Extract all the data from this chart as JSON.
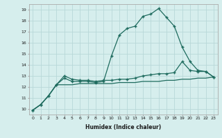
{
  "xlabel": "Humidex (Indice chaleur)",
  "ylabel": "",
  "background_color": "#d6eeed",
  "grid_color": "#b8d8d8",
  "line_color": "#1e6b5e",
  "xlim": [
    -0.5,
    23.5
  ],
  "ylim": [
    9.5,
    19.5
  ],
  "xtick_labels": [
    "0",
    "1",
    "2",
    "3",
    "4",
    "5",
    "6",
    "7",
    "8",
    "9",
    "10",
    "11",
    "12",
    "13",
    "14",
    "15",
    "16",
    "17",
    "18",
    "19",
    "20",
    "21",
    "22",
    "23"
  ],
  "ytick_labels": [
    "10",
    "11",
    "12",
    "13",
    "14",
    "15",
    "16",
    "17",
    "18",
    "19"
  ],
  "line1_x": [
    0,
    1,
    2,
    3,
    4,
    5,
    6,
    7,
    8,
    9,
    10,
    11,
    12,
    13,
    14,
    15,
    16,
    17,
    18,
    19,
    20,
    21,
    22,
    23
  ],
  "line1_y": [
    9.9,
    10.4,
    11.2,
    12.2,
    12.2,
    12.2,
    12.3,
    12.3,
    12.3,
    12.3,
    12.3,
    12.4,
    12.4,
    12.4,
    12.5,
    12.5,
    12.5,
    12.6,
    12.6,
    12.7,
    12.7,
    12.8,
    12.8,
    12.9
  ],
  "line2_x": [
    0,
    1,
    2,
    3,
    4,
    5,
    6,
    7,
    8,
    9,
    10,
    11,
    12,
    13,
    14,
    15,
    16,
    17,
    18,
    19,
    20,
    21,
    22,
    23
  ],
  "line2_y": [
    9.9,
    10.4,
    11.2,
    12.2,
    13.0,
    12.7,
    12.6,
    12.6,
    12.5,
    12.6,
    12.6,
    12.7,
    12.7,
    12.8,
    13.0,
    13.1,
    13.2,
    13.2,
    13.3,
    14.3,
    13.5,
    13.4,
    13.4,
    12.9
  ],
  "line3_x": [
    0,
    1,
    2,
    3,
    4,
    5,
    6,
    7,
    8,
    9,
    10,
    11,
    12,
    13,
    14,
    15,
    16,
    17,
    18,
    19,
    20,
    21,
    22,
    23
  ],
  "line3_y": [
    9.9,
    10.4,
    11.2,
    12.2,
    12.8,
    12.5,
    12.5,
    12.5,
    12.4,
    12.5,
    14.8,
    16.7,
    17.3,
    17.5,
    18.4,
    18.6,
    19.1,
    18.3,
    17.5,
    15.6,
    14.3,
    13.5,
    13.4,
    12.9
  ]
}
